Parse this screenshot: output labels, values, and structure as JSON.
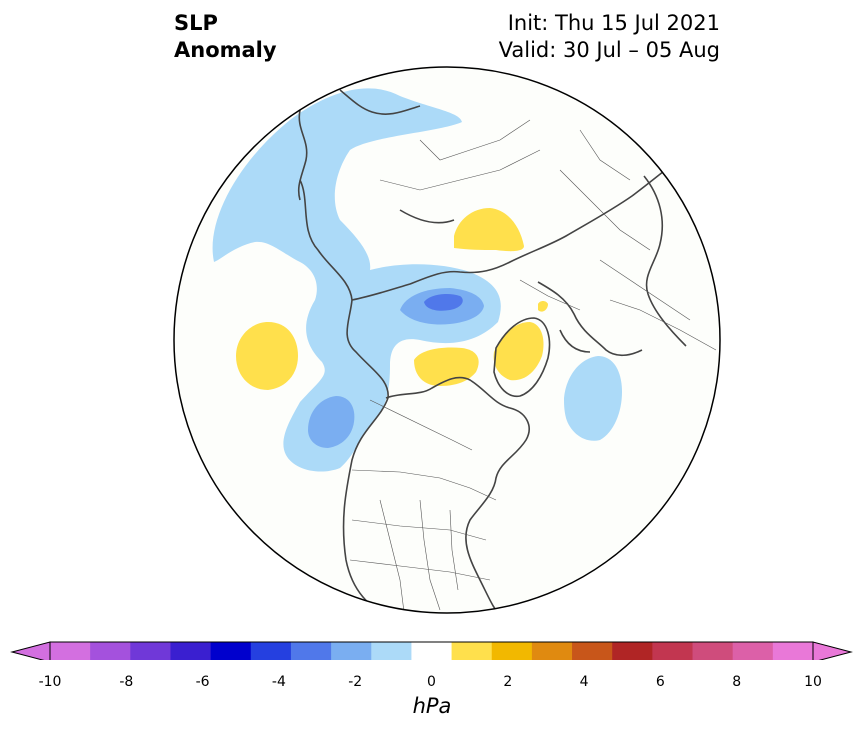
{
  "title": {
    "line1": "SLP",
    "line2": "Anomaly",
    "init": "Init: Thu 15 Jul 2021",
    "valid": "Valid: 30 Jul – 05 Aug"
  },
  "colorbar": {
    "unit": "hPa",
    "levels": [
      -10,
      -9,
      -8,
      -7,
      -6,
      -5,
      -4,
      -3,
      -2,
      -1,
      1,
      2,
      3,
      4,
      5,
      6,
      7,
      8,
      9,
      10
    ],
    "tick_labels": [
      "-10",
      "-8",
      "-6",
      "-4",
      "-2",
      "0",
      "2",
      "4",
      "6",
      "8",
      "10"
    ],
    "colors": [
      "#d36fe0",
      "#a451dd",
      "#7038d8",
      "#3a1fd0",
      "#0000cd",
      "#2540e0",
      "#5078ea",
      "#7aaef1",
      "#acdaf8",
      "#ffffff",
      "#ffe04c",
      "#f2b800",
      "#e08a10",
      "#c8561a",
      "#b02525",
      "#c23650",
      "#cf4c7c",
      "#dc60a8",
      "#e978d8"
    ],
    "under_color": "#d36fe0",
    "over_color": "#e978d8"
  },
  "map": {
    "projection": "north polar stereographic",
    "background_color": "#fdfefb",
    "coastline_color": "#444444"
  }
}
